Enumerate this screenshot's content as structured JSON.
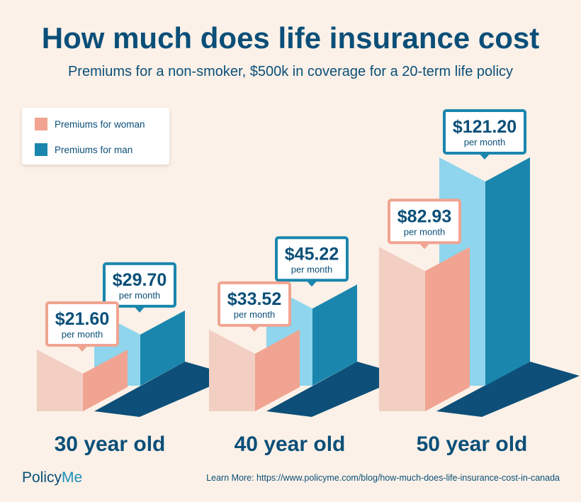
{
  "header": {
    "title": "How much does life insurance cost",
    "subtitle": "Premiums for a non-smoker, $500k in coverage for a 20-term life policy"
  },
  "legend": {
    "items": [
      {
        "label": "Premiums for woman",
        "color": "#f0a491"
      },
      {
        "label": "Premiums for man",
        "color": "#1a86ad"
      }
    ]
  },
  "chart_data": {
    "type": "bar",
    "categories": [
      "30 year old",
      "40 year old",
      "50 year old"
    ],
    "series": [
      {
        "name": "Premiums for woman",
        "values": [
          21.6,
          33.52,
          82.93
        ],
        "labels": [
          "$21.60",
          "$33.52",
          "$82.93"
        ]
      },
      {
        "name": "Premiums for man",
        "values": [
          29.7,
          45.22,
          121.2
        ],
        "labels": [
          "$29.70",
          "$45.22",
          "$121.20"
        ]
      }
    ],
    "value_unit_label": "per month",
    "title": "How much does life insurance cost",
    "subtitle": "Premiums for a non-smoker, $500k in coverage for a 20-term life policy",
    "legend_position": "top-left",
    "grid": false
  },
  "colors": {
    "background": "#fbf1e8",
    "title": "#0b4f78",
    "woman_front": "#f0a491",
    "woman_side": "#f2cfc2",
    "man_front": "#1a86ad",
    "man_side": "#8fd5ee",
    "shadow": "#0d4f78"
  },
  "footer": {
    "brand_main": "Policy",
    "brand_accent": "Me",
    "learn_more": "Learn More: https://www.policyme.com/blog/how-much-does-life-insurance-cost-in-canada"
  }
}
